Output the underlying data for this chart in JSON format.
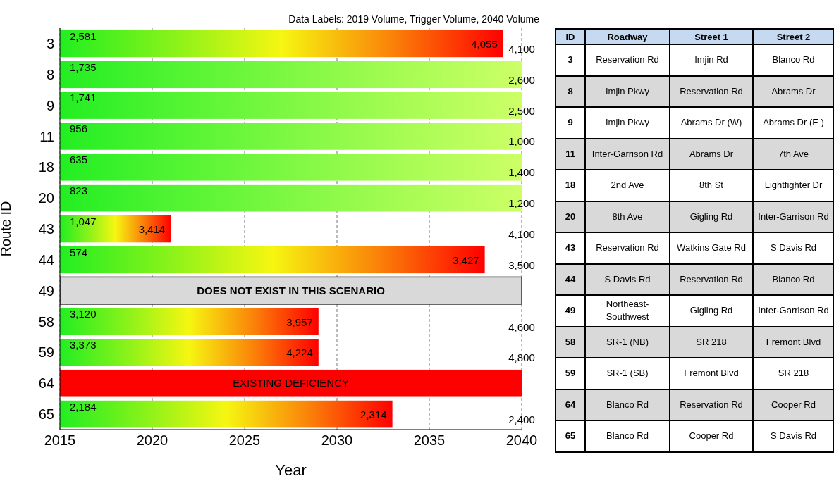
{
  "chart_data": [
    {
      "type": "bar",
      "orientation": "horizontal",
      "subtitle": "Data Labels: 2019 Volume,  Trigger Volume, 2040 Volume",
      "xlabel": "Year",
      "ylabel": "Route ID",
      "categories": [
        "3",
        "8",
        "9",
        "11",
        "18",
        "20",
        "43",
        "44",
        "49",
        "58",
        "59",
        "64",
        "65"
      ],
      "series": [
        {
          "color": "#22ee22",
          "colors": [
            "#ff0000",
            "#ccff66",
            "#ccff66",
            "#ccff66",
            "#ccff66",
            "#ccff66",
            "#ff0000",
            "#ff0000",
            "#ff0000",
            "#ff0000",
            "#ff0000",
            "#ff0000",
            "#ff0000"
          ],
          "values": [
            2039,
            2040,
            2040,
            2040,
            2040,
            2040,
            2021,
            2038,
            null,
            2029,
            2029,
            null,
            2033
          ]
        },
        {
          "colors": [
            "#d9d9d9",
            "#d9d9d9",
            "#d9d9d9",
            "#d9d9d9",
            "#d9d9d9",
            "#d9d9d9",
            "#d9d9d9",
            "#d9d9d9",
            "#d9d9d9",
            "#d9d9d9",
            "#d9d9d9",
            "#ff0000",
            "#d9d9d9"
          ],
          "values": [
            null,
            null,
            null,
            null,
            null,
            null,
            null,
            null,
            2040,
            null,
            null,
            2040,
            null
          ]
        }
      ],
      "y2_categories": [
        "4,100",
        "2,600",
        "2,500",
        "1,000",
        "1,400",
        "1,200",
        "4,100",
        "3,500",
        null,
        "4,600",
        "4,800",
        null,
        "2,400"
      ],
      "xlim": [
        2015,
        2040
      ],
      "xticks": [
        2015,
        2020,
        2025,
        2030,
        2035,
        2040
      ],
      "grid": "x",
      "annotations": [
        {
          "text": "2,581",
          "y": "3"
        },
        {
          "text": "4,055",
          "x": 2039,
          "y": "3"
        },
        {
          "text": "1,735",
          "y": "8"
        },
        {
          "text": "1,741",
          "y": "9"
        },
        {
          "text": "956",
          "y": "11"
        },
        {
          "text": "635",
          "y": "18"
        },
        {
          "text": "823",
          "y": "20"
        },
        {
          "text": "1,047",
          "y": "43"
        },
        {
          "text": "3,414",
          "x": 2021,
          "y": "43"
        },
        {
          "text": "574",
          "y": "44"
        },
        {
          "text": "3,427",
          "x": 2038,
          "y": "44"
        },
        {
          "text": "DOES NOT EXIST IN THIS SCENARIO",
          "y": "49"
        },
        {
          "text": "3,120",
          "y": "58"
        },
        {
          "text": "3,957",
          "x": 2029,
          "y": "58"
        },
        {
          "text": "3,373",
          "y": "59"
        },
        {
          "text": "4,224",
          "x": 2029,
          "y": "59"
        },
        {
          "text": "EXISTING DEFICIENCY",
          "y": "64"
        },
        {
          "text": "2,184",
          "y": "65"
        },
        {
          "text": "2,314",
          "x": 2033,
          "y": "65"
        }
      ]
    },
    {
      "type": "other",
      "categories": [
        "ID",
        "Roadway",
        "Street 1",
        "Street 2"
      ],
      "cell_labels": [
        [
          "3",
          "Reservation Rd",
          "Imjin Rd",
          "Blanco Rd"
        ],
        [
          "8",
          "Imjin Pkwy",
          "Reservation Rd",
          "Abrams Dr"
        ],
        [
          "9",
          "Imjin Pkwy",
          "Abrams Dr (W)",
          "Abrams Dr (E )"
        ],
        [
          "11",
          "Inter-Garrison Rd",
          "Abrams Dr",
          "7th Ave"
        ],
        [
          "18",
          "2nd Ave",
          "8th St",
          "Lightfighter Dr"
        ],
        [
          "20",
          "8th Ave",
          "Gigling Rd",
          "Inter-Garrison Rd"
        ],
        [
          "43",
          "Reservation Rd",
          "Watkins Gate Rd",
          "S Davis Rd"
        ],
        [
          "44",
          "S Davis Rd",
          "Reservation Rd",
          "Blanco Rd"
        ],
        [
          "49",
          "Northeast-Southwest",
          "Gigling Rd",
          "Inter-Garrison Rd"
        ],
        [
          "58",
          "SR-1 (NB)",
          "SR 218",
          "Fremont Blvd"
        ],
        [
          "59",
          "SR-1 (SB)",
          "Fremont Blvd",
          "SR 218"
        ],
        [
          "64",
          "Blanco Rd",
          "Reservation Rd",
          "Cooper Rd"
        ],
        [
          "65",
          "Blanco Rd",
          "Cooper Rd",
          "S Davis Rd"
        ]
      ]
    }
  ]
}
